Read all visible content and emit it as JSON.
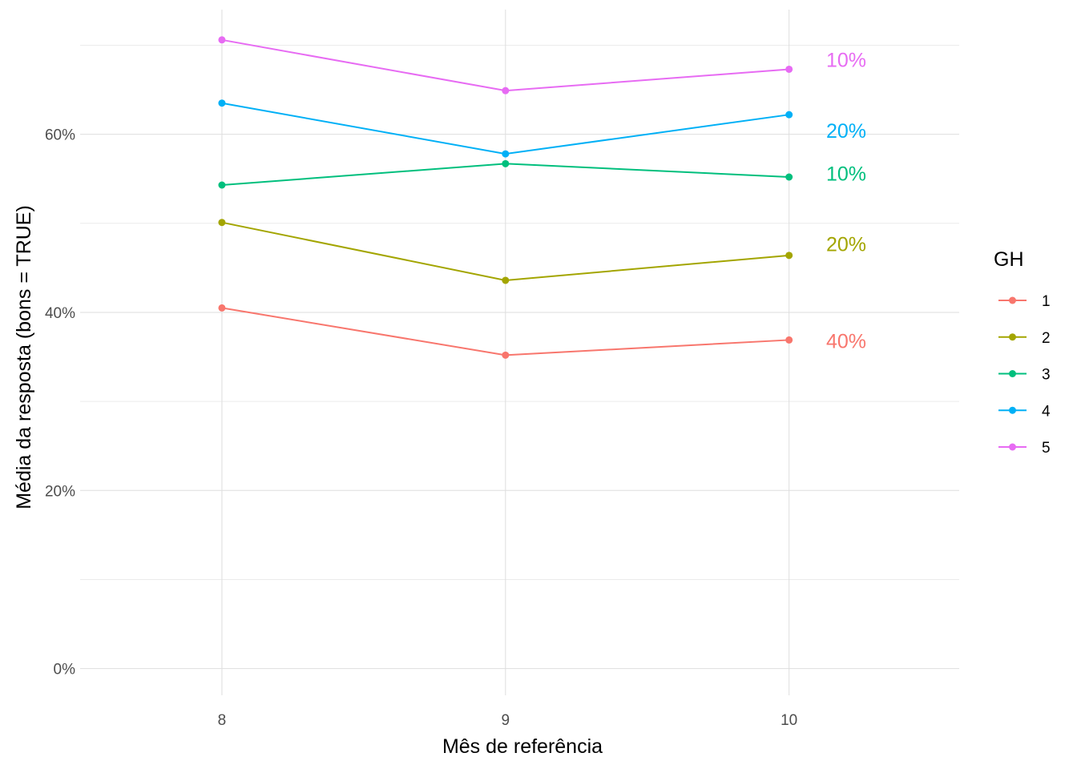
{
  "chart_data": {
    "type": "line",
    "x": [
      8,
      9,
      10
    ],
    "xlabel": "Mês de referência",
    "ylabel": "Média da resposta (bons = TRUE)",
    "xlim": [
      7.5,
      10.6
    ],
    "ylim": [
      -0.03,
      0.74
    ],
    "y_ticks": [
      0,
      0.2,
      0.4,
      0.6
    ],
    "y_tick_labels": [
      "0%",
      "20%",
      "40%",
      "60%"
    ],
    "x_ticks": [
      8,
      9,
      10
    ],
    "x_tick_labels": [
      "8",
      "9",
      "10"
    ],
    "grid": true,
    "legend": {
      "title": "GH",
      "position": "right"
    },
    "series": [
      {
        "name": "1",
        "color": "#F8766D",
        "values": [
          0.405,
          0.352,
          0.369
        ],
        "end_label": "40%",
        "end_label_y": 0.368
      },
      {
        "name": "2",
        "color": "#A3A500",
        "values": [
          0.501,
          0.436,
          0.464
        ],
        "end_label": "20%",
        "end_label_y": 0.477
      },
      {
        "name": "3",
        "color": "#00BF7D",
        "values": [
          0.543,
          0.567,
          0.552
        ],
        "end_label": "10%",
        "end_label_y": 0.556
      },
      {
        "name": "4",
        "color": "#00B0F6",
        "values": [
          0.635,
          0.578,
          0.622
        ],
        "end_label": "20%",
        "end_label_y": 0.604
      },
      {
        "name": "5",
        "color": "#E76BF3",
        "values": [
          0.706,
          0.649,
          0.673
        ],
        "end_label": "10%",
        "end_label_y": 0.684
      }
    ]
  }
}
